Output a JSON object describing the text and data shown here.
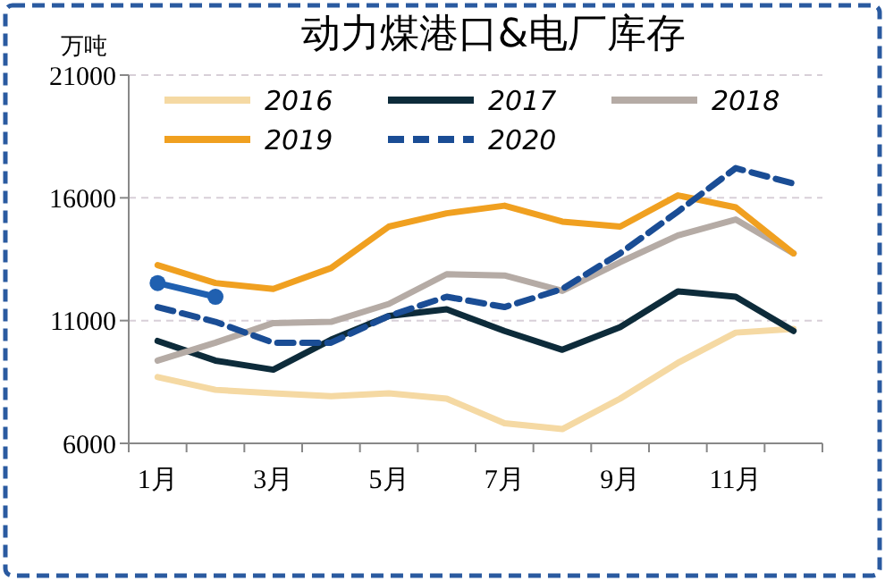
{
  "chart_data": {
    "type": "line",
    "title": "动力煤港口&电厂库存",
    "ylabel": "万吨",
    "categories": [
      "1月",
      null,
      "3月",
      null,
      "5月",
      null,
      "7月",
      null,
      "9月",
      null,
      "11月",
      null
    ],
    "series": [
      {
        "name": "2016",
        "color": "#f5d9a3",
        "values": [
          8700,
          8180,
          8040,
          7920,
          8040,
          7820,
          6820,
          6580,
          7820,
          9280,
          10510,
          10660
        ]
      },
      {
        "name": "2017",
        "color": "#0d2b3a",
        "values": [
          10170,
          9370,
          9000,
          10220,
          11190,
          11460,
          10580,
          9810,
          10730,
          12190,
          11970,
          10580
        ]
      },
      {
        "name": "2018",
        "color": "#b5aba5",
        "values": [
          9370,
          10100,
          10900,
          10950,
          11680,
          12890,
          12840,
          12210,
          13380,
          14470,
          15120,
          13740
        ]
      },
      {
        "name": "2019",
        "color": "#f0a020",
        "values": [
          13260,
          12530,
          12290,
          13140,
          14830,
          15370,
          15680,
          15030,
          14830,
          16100,
          15610,
          13740
        ]
      },
      {
        "name": "2020",
        "color": "#1a4d95",
        "line_style": "dashed",
        "values": [
          11550,
          10950,
          10100,
          10100,
          11190,
          11970,
          11550,
          12290,
          13740,
          15440,
          17210,
          16580
        ]
      },
      {
        "color": "#2060b0",
        "marker": "circle",
        "values": [
          12530,
          11970,
          null,
          null,
          null,
          null,
          null,
          null,
          null,
          null,
          null,
          null
        ]
      }
    ],
    "ylim": [
      6000,
      21000
    ],
    "yticks": [
      6000,
      11000,
      16000,
      21000
    ],
    "grid": "y",
    "legend": "top"
  }
}
